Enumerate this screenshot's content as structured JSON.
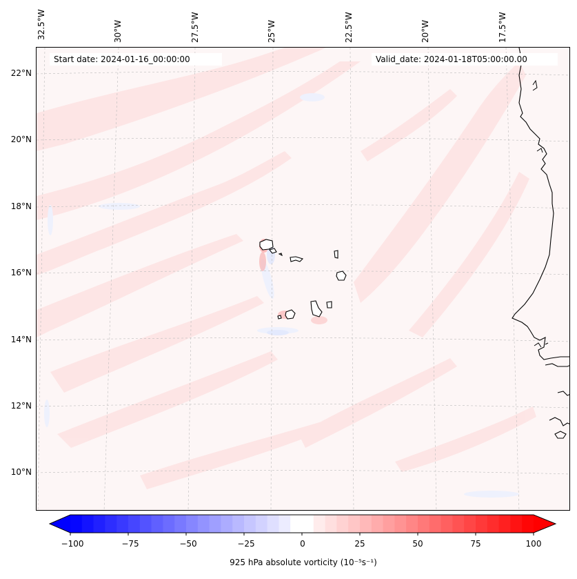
{
  "header": {
    "start_date": "Start date: 2024-01-16_00:00:00",
    "valid_date": "Valid_date: 2024-01-18T05:00:00.00"
  },
  "axes": {
    "lon_labels": [
      "32.5°W",
      "30°W",
      "27.5°W",
      "25°W",
      "22.5°W",
      "20°W",
      "17.5°W"
    ],
    "lat_labels": [
      "22°N",
      "20°N",
      "18°N",
      "16°N",
      "14°N",
      "12°N",
      "10°N"
    ]
  },
  "colorbar": {
    "ticks": [
      "−100",
      "−75",
      "−50",
      "−25",
      "0",
      "25",
      "50",
      "75",
      "100"
    ],
    "label": "925 hPa absolute vorticity (10⁻⁵s⁻¹)",
    "min": -100,
    "max": 100,
    "negative_color": "#0000ff",
    "positive_color": "#ff0000",
    "extend": "both"
  },
  "map": {
    "field": "925 hPa absolute vorticity",
    "coastline_color": "#000000",
    "gridlines": true,
    "gridline_style": "dashed"
  }
}
